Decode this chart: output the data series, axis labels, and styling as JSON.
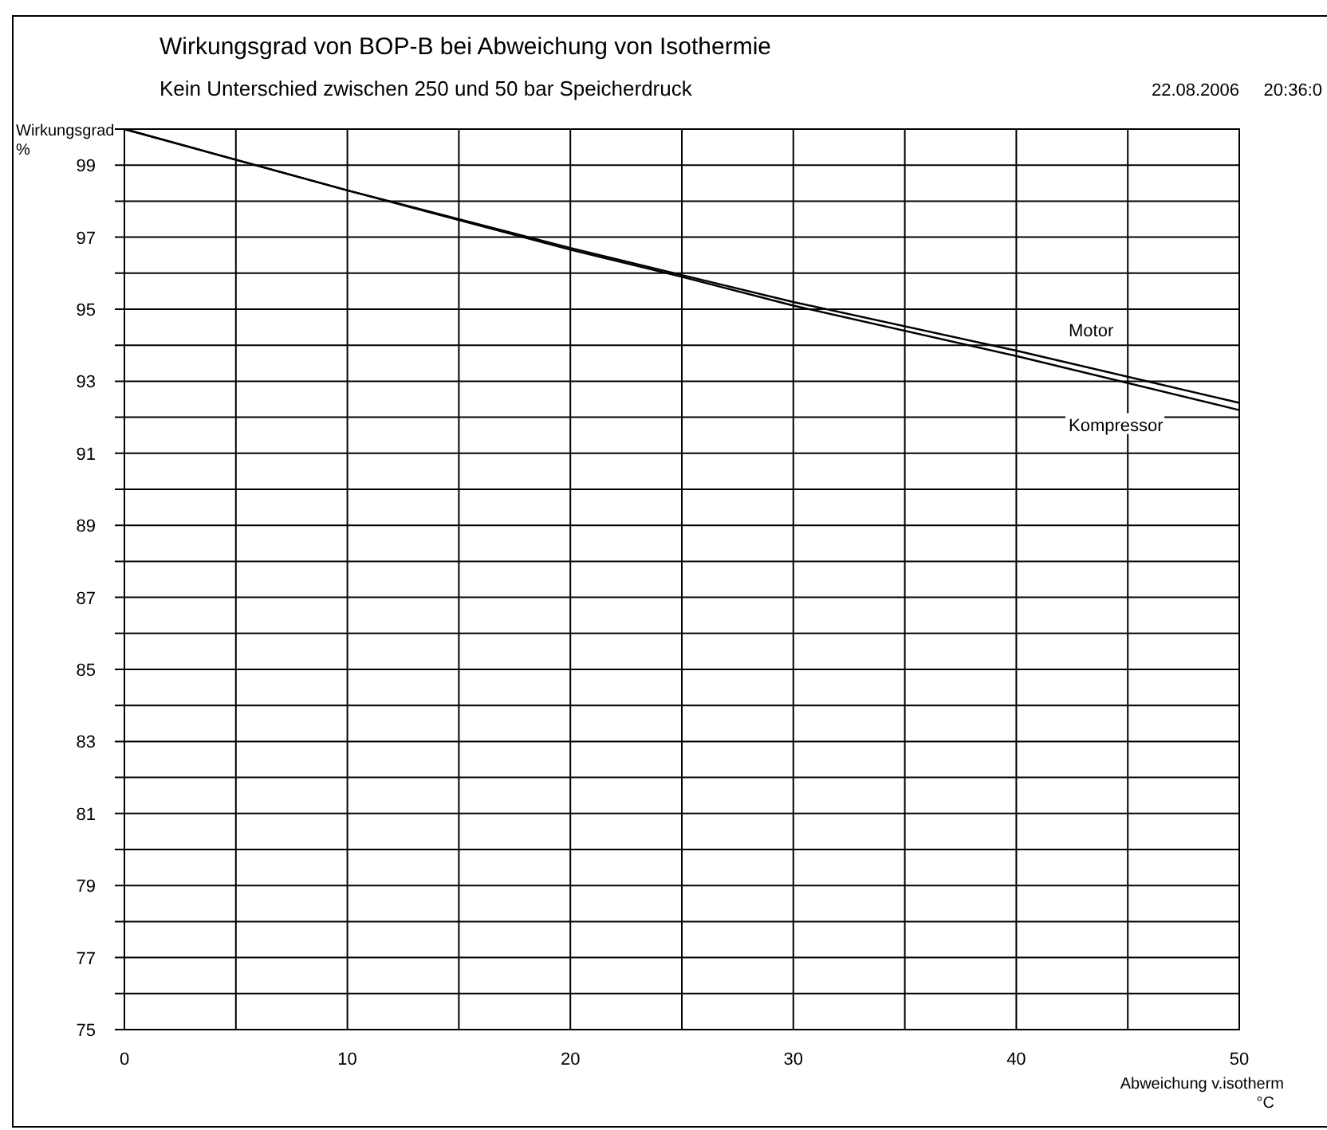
{
  "chart_data": {
    "type": "line",
    "title": "Wirkungsgrad von BOP-B bei Abweichung von Isothermie",
    "subtitle": "Kein Unterschied zwischen 250 und 50 bar Speicherdruck",
    "annotations": [
      "22.08.2006     20:36:0"
    ],
    "ylabel": "Wirkungsgrad %",
    "xlabel": "Abweichung v.isotherm °C",
    "x": [
      0,
      10,
      20,
      25,
      30,
      40,
      50
    ],
    "series": [
      {
        "name": "Motor",
        "color": "#000000",
        "values": [
          100,
          98.3,
          96.7,
          95.95,
          95.2,
          93.85,
          92.4
        ]
      },
      {
        "name": "Kompressor",
        "color": "#000000",
        "values": [
          100,
          98.3,
          96.65,
          95.9,
          95.1,
          93.7,
          92.2
        ]
      }
    ],
    "xlim": [
      0,
      50
    ],
    "xticks": [
      0,
      {
        "value": 5,
        "label": null
      },
      10,
      {
        "value": 15,
        "label": null
      },
      20,
      {
        "value": 25,
        "label": null
      },
      30,
      {
        "value": 35,
        "label": null
      },
      40,
      {
        "value": 45,
        "label": null
      },
      50
    ],
    "ylim": [
      75,
      100
    ],
    "yticks": [
      75,
      {
        "value": 76,
        "label": null
      },
      77,
      {
        "value": 78,
        "label": null
      },
      79,
      {
        "value": 80,
        "label": null
      },
      81,
      {
        "value": 82,
        "label": null
      },
      83,
      {
        "value": 84,
        "label": null
      },
      85,
      {
        "value": 86,
        "label": null
      },
      87,
      {
        "value": 88,
        "label": null
      },
      89,
      {
        "value": 90,
        "label": null
      },
      91,
      {
        "value": 92,
        "label": null
      },
      93,
      {
        "value": 94,
        "label": null
      },
      95,
      {
        "value": 96,
        "label": null
      },
      97,
      {
        "value": 98,
        "label": null
      },
      99,
      {
        "value": 100,
        "label": null
      }
    ],
    "grid": true,
    "marker": "none",
    "line_style": "solid"
  }
}
